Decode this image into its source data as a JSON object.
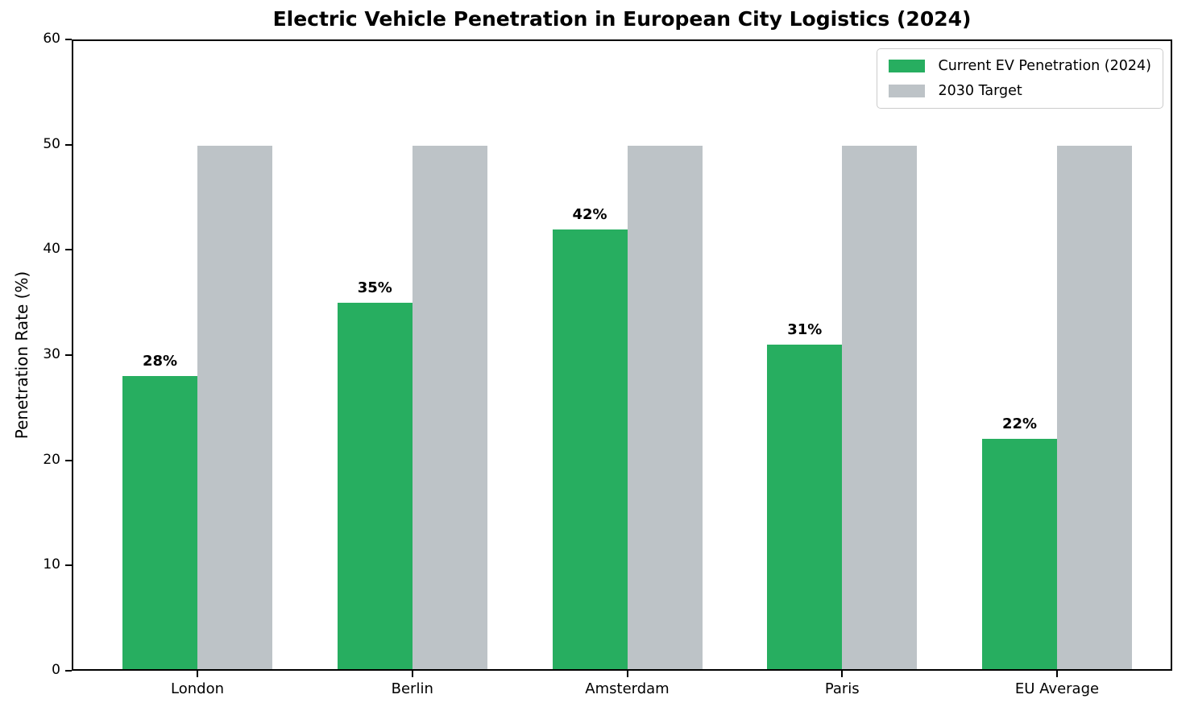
{
  "chart_data": {
    "type": "bar",
    "title": "Electric Vehicle Penetration in European City Logistics (2024)",
    "xlabel": "",
    "ylabel": "Penetration Rate (%)",
    "categories": [
      "London",
      "Berlin",
      "Amsterdam",
      "Paris",
      "EU Average"
    ],
    "series": [
      {
        "name": "Current EV Penetration (2024)",
        "color": "#27ae60",
        "values": [
          28,
          35,
          42,
          31,
          22
        ],
        "value_labels": [
          "28%",
          "35%",
          "42%",
          "31%",
          "22%"
        ]
      },
      {
        "name": "2030 Target",
        "color": "#bdc3c7",
        "values": [
          50,
          50,
          50,
          50,
          50
        ],
        "value_labels": []
      }
    ],
    "ylim": [
      0,
      60
    ],
    "yticks": [
      "0",
      "10",
      "20",
      "30",
      "40",
      "50",
      "60"
    ],
    "grid": false,
    "legend_position": "upper right",
    "background": "#ffffff",
    "axis_color": "#000000"
  }
}
